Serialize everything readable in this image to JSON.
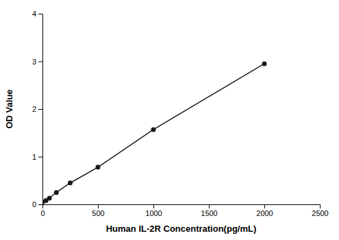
{
  "chart_data": {
    "type": "line",
    "x": [
      0,
      31.25,
      62.5,
      125,
      250,
      500,
      1000,
      2000
    ],
    "values": [
      0.05,
      0.08,
      0.13,
      0.25,
      0.45,
      0.78,
      1.57,
      2.95
    ],
    "xlabel": "Human IL-2R Concentration(pg/mL)",
    "ylabel": "OD Value",
    "xlim": [
      0,
      2500
    ],
    "ylim": [
      0,
      4
    ],
    "xticks": [
      0,
      500,
      1000,
      1500,
      2000,
      2500
    ],
    "yticks": [
      0,
      1,
      2,
      3,
      4
    ],
    "color": "#1a1a1a",
    "marker": "circle",
    "grid": false
  }
}
